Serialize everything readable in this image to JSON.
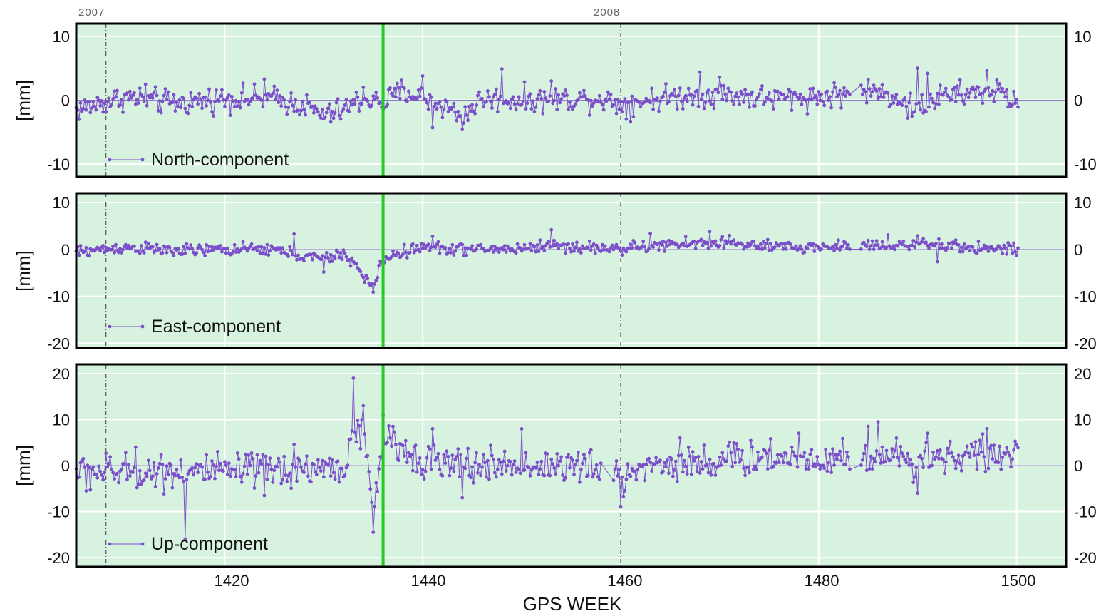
{
  "chart_data": {
    "type": "line",
    "x_label": "GPS WEEK",
    "x_ticks": [
      "1420",
      "1440",
      "1460",
      "1480",
      "1500"
    ],
    "xlim": [
      1405,
      1505
    ],
    "year_markers": [
      {
        "label": "2007",
        "week": 1408
      },
      {
        "label": "2008",
        "week": 1460
      }
    ],
    "event_week": 1436,
    "colors": {
      "background": "#d8f2e0",
      "series": "#7a4fc9",
      "event_line": "#22cc22",
      "grid": "#ffffff"
    },
    "panels": [
      {
        "series_name": "North-component",
        "ylabel": "[mm]",
        "ylim": [
          -12,
          12
        ],
        "yticks": [
          "-10",
          "0",
          "10"
        ],
        "keypoints": [
          [
            1405,
            -1.5
          ],
          [
            1410,
            0.5
          ],
          [
            1415,
            -0.5
          ],
          [
            1420,
            0.3
          ],
          [
            1425,
            0.2
          ],
          [
            1428,
            -0.8
          ],
          [
            1430,
            -2.5
          ],
          [
            1432,
            -1.5
          ],
          [
            1434,
            0.3
          ],
          [
            1436,
            -0.5
          ],
          [
            1438,
            1.5
          ],
          [
            1442,
            -0.8
          ],
          [
            1444,
            -2.5
          ],
          [
            1446,
            0.2
          ],
          [
            1450,
            0
          ],
          [
            1455,
            0.2
          ],
          [
            1458,
            0.3
          ],
          [
            1460,
            -0.5
          ],
          [
            1465,
            0.5
          ],
          [
            1470,
            1
          ],
          [
            1475,
            0.3
          ],
          [
            1480,
            0.5
          ],
          [
            1485,
            1.5
          ],
          [
            1488,
            0.5
          ],
          [
            1490,
            -1.5
          ],
          [
            1492,
            0.5
          ],
          [
            1495,
            1
          ],
          [
            1498,
            1.5
          ],
          [
            1500,
            -0.5
          ]
        ],
        "noise": 1.5,
        "spikes": [
          [
            1412,
            2.5
          ],
          [
            1424,
            3.3
          ],
          [
            1434,
            2
          ],
          [
            1440,
            3.8
          ],
          [
            1441,
            -4.3
          ],
          [
            1444,
            -4.6
          ],
          [
            1448,
            4.9
          ],
          [
            1453,
            3
          ],
          [
            1461,
            -3.4
          ],
          [
            1468,
            4.4
          ],
          [
            1470,
            3.6
          ],
          [
            1489,
            -2.8
          ],
          [
            1490,
            5
          ],
          [
            1491,
            4.2
          ],
          [
            1497,
            4.6
          ]
        ]
      },
      {
        "series_name": "East-component",
        "ylabel": "[mm]",
        "ylim": [
          -21,
          12
        ],
        "yticks": [
          "-20",
          "-10",
          "0",
          "10"
        ],
        "keypoints": [
          [
            1405,
            -0.5
          ],
          [
            1410,
            0.5
          ],
          [
            1415,
            -0.3
          ],
          [
            1420,
            0
          ],
          [
            1425,
            0
          ],
          [
            1428,
            -1.5
          ],
          [
            1430,
            -2
          ],
          [
            1432,
            -1
          ],
          [
            1433,
            -2.5
          ],
          [
            1434,
            -6
          ],
          [
            1435,
            -8
          ],
          [
            1436,
            -2
          ],
          [
            1438,
            -0.5
          ],
          [
            1440,
            0.5
          ],
          [
            1445,
            0
          ],
          [
            1450,
            0.2
          ],
          [
            1453,
            1
          ],
          [
            1455,
            0.5
          ],
          [
            1460,
            0.2
          ],
          [
            1465,
            1
          ],
          [
            1470,
            1.5
          ],
          [
            1475,
            0.5
          ],
          [
            1480,
            0.5
          ],
          [
            1485,
            1
          ],
          [
            1490,
            1
          ],
          [
            1495,
            0.5
          ],
          [
            1500,
            0
          ]
        ],
        "noise": 1.0,
        "spikes": [
          [
            1427,
            3.3
          ],
          [
            1430,
            -4.8
          ],
          [
            1435,
            -9.1
          ],
          [
            1441,
            2.8
          ],
          [
            1453,
            4.2
          ],
          [
            1463,
            3.4
          ],
          [
            1469,
            3.8
          ],
          [
            1471,
            3
          ],
          [
            1484,
            3.2
          ],
          [
            1487,
            3.1
          ],
          [
            1490,
            2.9
          ],
          [
            1492,
            -2.6
          ]
        ]
      },
      {
        "series_name": "Up-component",
        "ylabel": "[mm]",
        "ylim": [
          -22,
          22
        ],
        "yticks": [
          "-20",
          "-10",
          "0",
          "10",
          "20"
        ],
        "keypoints": [
          [
            1405,
            -1
          ],
          [
            1410,
            -1.5
          ],
          [
            1415,
            -1
          ],
          [
            1420,
            -1.5
          ],
          [
            1425,
            -1
          ],
          [
            1430,
            -0.5
          ],
          [
            1432,
            -1
          ],
          [
            1433,
            8
          ],
          [
            1434,
            6
          ],
          [
            1435,
            -10
          ],
          [
            1436,
            6
          ],
          [
            1438,
            3
          ],
          [
            1440,
            2
          ],
          [
            1442,
            0
          ],
          [
            1446,
            0
          ],
          [
            1450,
            0
          ],
          [
            1455,
            0
          ],
          [
            1458,
            -1
          ],
          [
            1460,
            -3
          ],
          [
            1462,
            0
          ],
          [
            1466,
            0.5
          ],
          [
            1470,
            1
          ],
          [
            1475,
            2
          ],
          [
            1480,
            1.5
          ],
          [
            1485,
            2
          ],
          [
            1490,
            1.5
          ],
          [
            1495,
            2.5
          ],
          [
            1500,
            2
          ]
        ],
        "noise": 3.0,
        "spikes": [
          [
            1406,
            -5.5
          ],
          [
            1411,
            4
          ],
          [
            1416,
            -16
          ],
          [
            1424,
            -6.5
          ],
          [
            1427,
            4.6
          ],
          [
            1433,
            19
          ],
          [
            1434,
            13
          ],
          [
            1435,
            -14.5
          ],
          [
            1436,
            11
          ],
          [
            1441,
            8
          ],
          [
            1444,
            -7
          ],
          [
            1450,
            8
          ],
          [
            1460,
            -9
          ],
          [
            1466,
            6
          ],
          [
            1478,
            7
          ],
          [
            1485,
            8.5
          ],
          [
            1486,
            9.5
          ],
          [
            1490,
            -6
          ],
          [
            1491,
            7
          ],
          [
            1497,
            8
          ]
        ]
      }
    ]
  }
}
